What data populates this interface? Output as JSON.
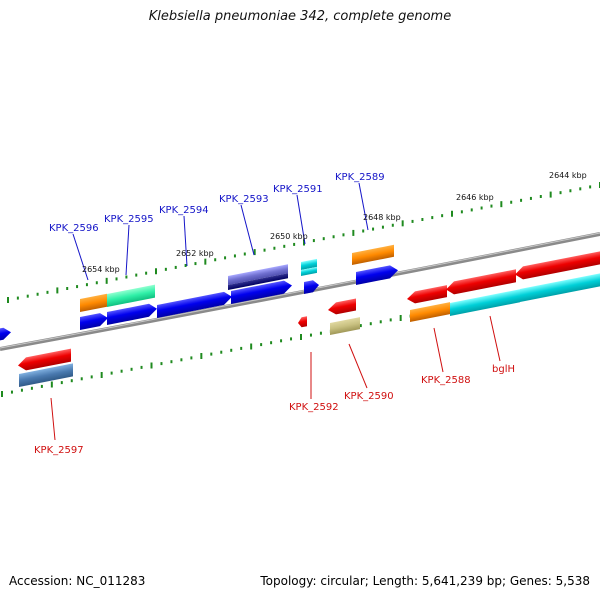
{
  "title": "Klebsiella pneumoniae 342, complete genome",
  "footer": {
    "accession": "Accession: NC_011283",
    "topology": "Topology: circular; Length: 5,641,239 bp; Genes: 5,538"
  },
  "colors": {
    "backbone": "#8a8a8a",
    "tick": "#1f8a1f",
    "top_label": "#1515c8",
    "bottom_label": "#d01010",
    "scale_text": "#111111"
  },
  "scale_labels": [
    "2654 kbp",
    "2652 kbp",
    "2650 kbp",
    "2648 kbp",
    "2646 kbp",
    "2644 kbp"
  ],
  "gene_labels": {
    "top": [
      "KPK_2596",
      "KPK_2595",
      "KPK_2594",
      "KPK_2593",
      "KPK_2591",
      "KPK_2589"
    ],
    "bottom": [
      "KPK_2597",
      "KPK_2592",
      "KPK_2590",
      "KPK_2588",
      "bglH"
    ]
  }
}
